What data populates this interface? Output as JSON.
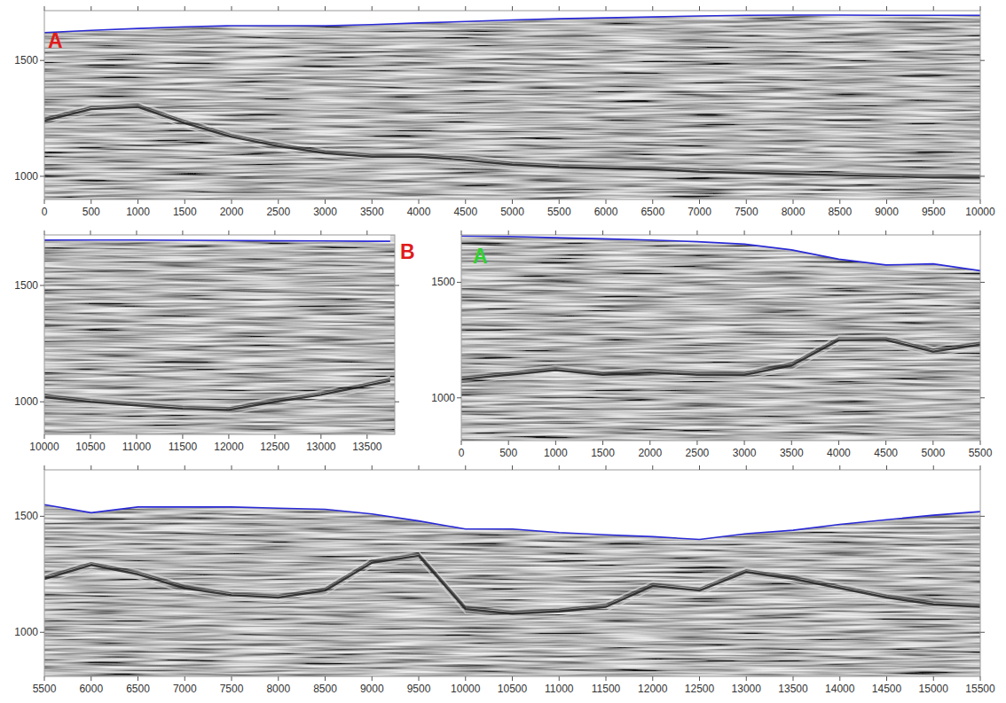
{
  "chart_data": [
    {
      "type": "line",
      "x": [
        0,
        500,
        1000,
        1500,
        2000,
        2500,
        3000,
        3500,
        4000,
        4500,
        5000,
        5500,
        6000,
        6500,
        7000,
        7500,
        8000,
        8500,
        9000,
        9500,
        10000
      ],
      "series": [
        {
          "color": "#2b2bd6",
          "values": [
            1620,
            1630,
            1638,
            1645,
            1650,
            1650,
            1650,
            1655,
            1662,
            1668,
            1675,
            1680,
            1684,
            1688,
            1692,
            1695,
            1696,
            1696,
            1695,
            1695,
            1695
          ]
        },
        {
          "color": "#1e1e1e",
          "values": [
            1240,
            1290,
            1300,
            1230,
            1170,
            1130,
            1100,
            1085,
            1085,
            1070,
            1050,
            1040,
            1035,
            1030,
            1020,
            1015,
            1010,
            1005,
            1000,
            995,
            995
          ]
        }
      ],
      "xlim": [
        0,
        10000
      ],
      "ylim": [
        900,
        1715
      ],
      "xticks": [
        0,
        500,
        1000,
        1500,
        2000,
        2500,
        3000,
        3500,
        4000,
        4500,
        5000,
        5500,
        6000,
        6500,
        7000,
        7500,
        8000,
        8500,
        9000,
        9500,
        10000
      ],
      "yticks": [
        1000,
        1500
      ],
      "annotations": [
        {
          "text": "A",
          "color": "#e01b1b"
        }
      ]
    },
    {
      "type": "line",
      "x": [
        10000,
        10500,
        11000,
        11500,
        12000,
        12500,
        13000,
        13500,
        13750
      ],
      "series": [
        {
          "color": "#2b2bd6",
          "values": [
            1695,
            1695,
            1695,
            1694,
            1693,
            1692,
            1691,
            1690,
            1690
          ]
        },
        {
          "color": "#1e1e1e",
          "values": [
            1020,
            1000,
            985,
            970,
            965,
            1000,
            1030,
            1070,
            1090
          ]
        }
      ],
      "xlim": [
        10000,
        13800
      ],
      "ylim": [
        860,
        1717
      ],
      "xticks": [
        10000,
        10500,
        11000,
        11500,
        12000,
        12500,
        13000,
        13500
      ],
      "yticks": [
        1000,
        1500
      ],
      "annotations": [
        {
          "text": "B",
          "color": "#e01b1b"
        }
      ]
    },
    {
      "type": "line",
      "x": [
        0,
        500,
        1000,
        1500,
        2000,
        2500,
        3000,
        3500,
        4000,
        4500,
        5000,
        5500
      ],
      "series": [
        {
          "color": "#2b2bd6",
          "values": [
            1700,
            1698,
            1693,
            1688,
            1683,
            1676,
            1665,
            1640,
            1600,
            1575,
            1580,
            1550
          ]
        },
        {
          "color": "#1e1e1e",
          "values": [
            1080,
            1100,
            1120,
            1100,
            1110,
            1100,
            1100,
            1140,
            1250,
            1250,
            1200,
            1230
          ]
        }
      ],
      "xlim": [
        0,
        5500
      ],
      "ylim": [
        815,
        1705
      ],
      "xticks": [
        0,
        500,
        1000,
        1500,
        2000,
        2500,
        3000,
        3500,
        4000,
        4500,
        5000,
        5500
      ],
      "yticks": [
        1000,
        1500
      ],
      "annotations": [
        {
          "text": "A",
          "color": "#2fd12f"
        }
      ]
    },
    {
      "type": "line",
      "x": [
        5500,
        6000,
        6500,
        7000,
        7500,
        8000,
        8500,
        9000,
        9500,
        10000,
        10500,
        11000,
        11500,
        12000,
        12500,
        13000,
        13500,
        14000,
        14500,
        15000,
        15500
      ],
      "series": [
        {
          "color": "#2b2bd6",
          "values": [
            1550,
            1515,
            1540,
            1540,
            1540,
            1535,
            1530,
            1510,
            1480,
            1445,
            1445,
            1430,
            1420,
            1412,
            1400,
            1425,
            1440,
            1465,
            1485,
            1505,
            1520
          ]
        },
        {
          "color": "#1e1e1e",
          "values": [
            1230,
            1290,
            1250,
            1190,
            1160,
            1150,
            1180,
            1300,
            1330,
            1100,
            1080,
            1090,
            1110,
            1200,
            1180,
            1260,
            1230,
            1190,
            1150,
            1120,
            1110
          ]
        }
      ],
      "xlim": [
        5500,
        15500
      ],
      "ylim": [
        810,
        1700
      ],
      "xticks": [
        5500,
        6000,
        6500,
        7000,
        7500,
        8000,
        8500,
        9000,
        9500,
        10000,
        10500,
        11000,
        11500,
        12000,
        12500,
        13000,
        13500,
        14000,
        14500,
        15000,
        15500
      ],
      "yticks": [
        1000,
        1500
      ]
    }
  ]
}
